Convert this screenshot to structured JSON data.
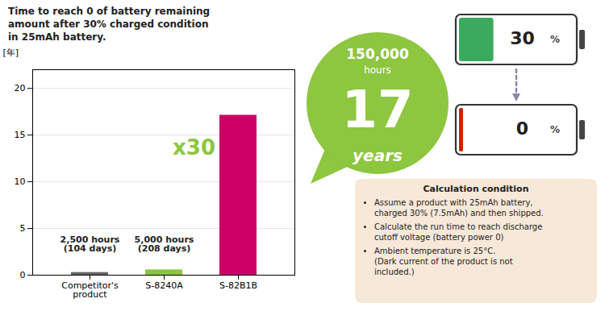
{
  "chart_data": {
    "type": "bar",
    "title": "Time to reach 0 of battery remaining\namount after 30% charged condition\nin 25mAh battery.",
    "ylabel": "[年]",
    "categories": [
      "Competitor's\nproduct",
      "S-8240A",
      "S-82B1B"
    ],
    "values": [
      0.285,
      0.571,
      17.123
    ],
    "colors": [
      "#666666",
      "#8dc63f",
      "#cc0066"
    ],
    "ylim": [
      0,
      22
    ],
    "yticks": [
      0,
      5,
      10,
      15,
      20
    ],
    "grid": true,
    "annotations": [
      {
        "text": "2,500 hours",
        "category": "Competitor's\nproduct"
      },
      {
        "text": "(104 days)",
        "category": "Competitor's\nproduct"
      },
      {
        "text": "5,000 hours",
        "category": "S-8240A"
      },
      {
        "text": "(208 days)",
        "category": "S-8240A"
      }
    ],
    "callout": {
      "color": "#8dc63f",
      "label": "x30",
      "category": "S-82B1B",
      "texts": [
        "150,000",
        "hours",
        "17",
        "years"
      ]
    },
    "batteries": [
      {
        "text": "30",
        "unit": "%",
        "color": "#3aaa5c"
      },
      {
        "text": "0",
        "unit": "%",
        "color": "#cc2200"
      }
    ],
    "arrow_color": "#8888aa",
    "note": {
      "title": "Calculation condition",
      "color": "#f7e8d8",
      "bullets": [
        "Assume a product with 25mAh battery,\ncharged 30% (7.5mAh) and then shipped.",
        "Calculate the run time to reach discharge\ncutoff voltage (battery power 0)",
        "Ambient temperature is 25°C.\n(Dark current of the product is not\nincluded.)"
      ]
    }
  }
}
